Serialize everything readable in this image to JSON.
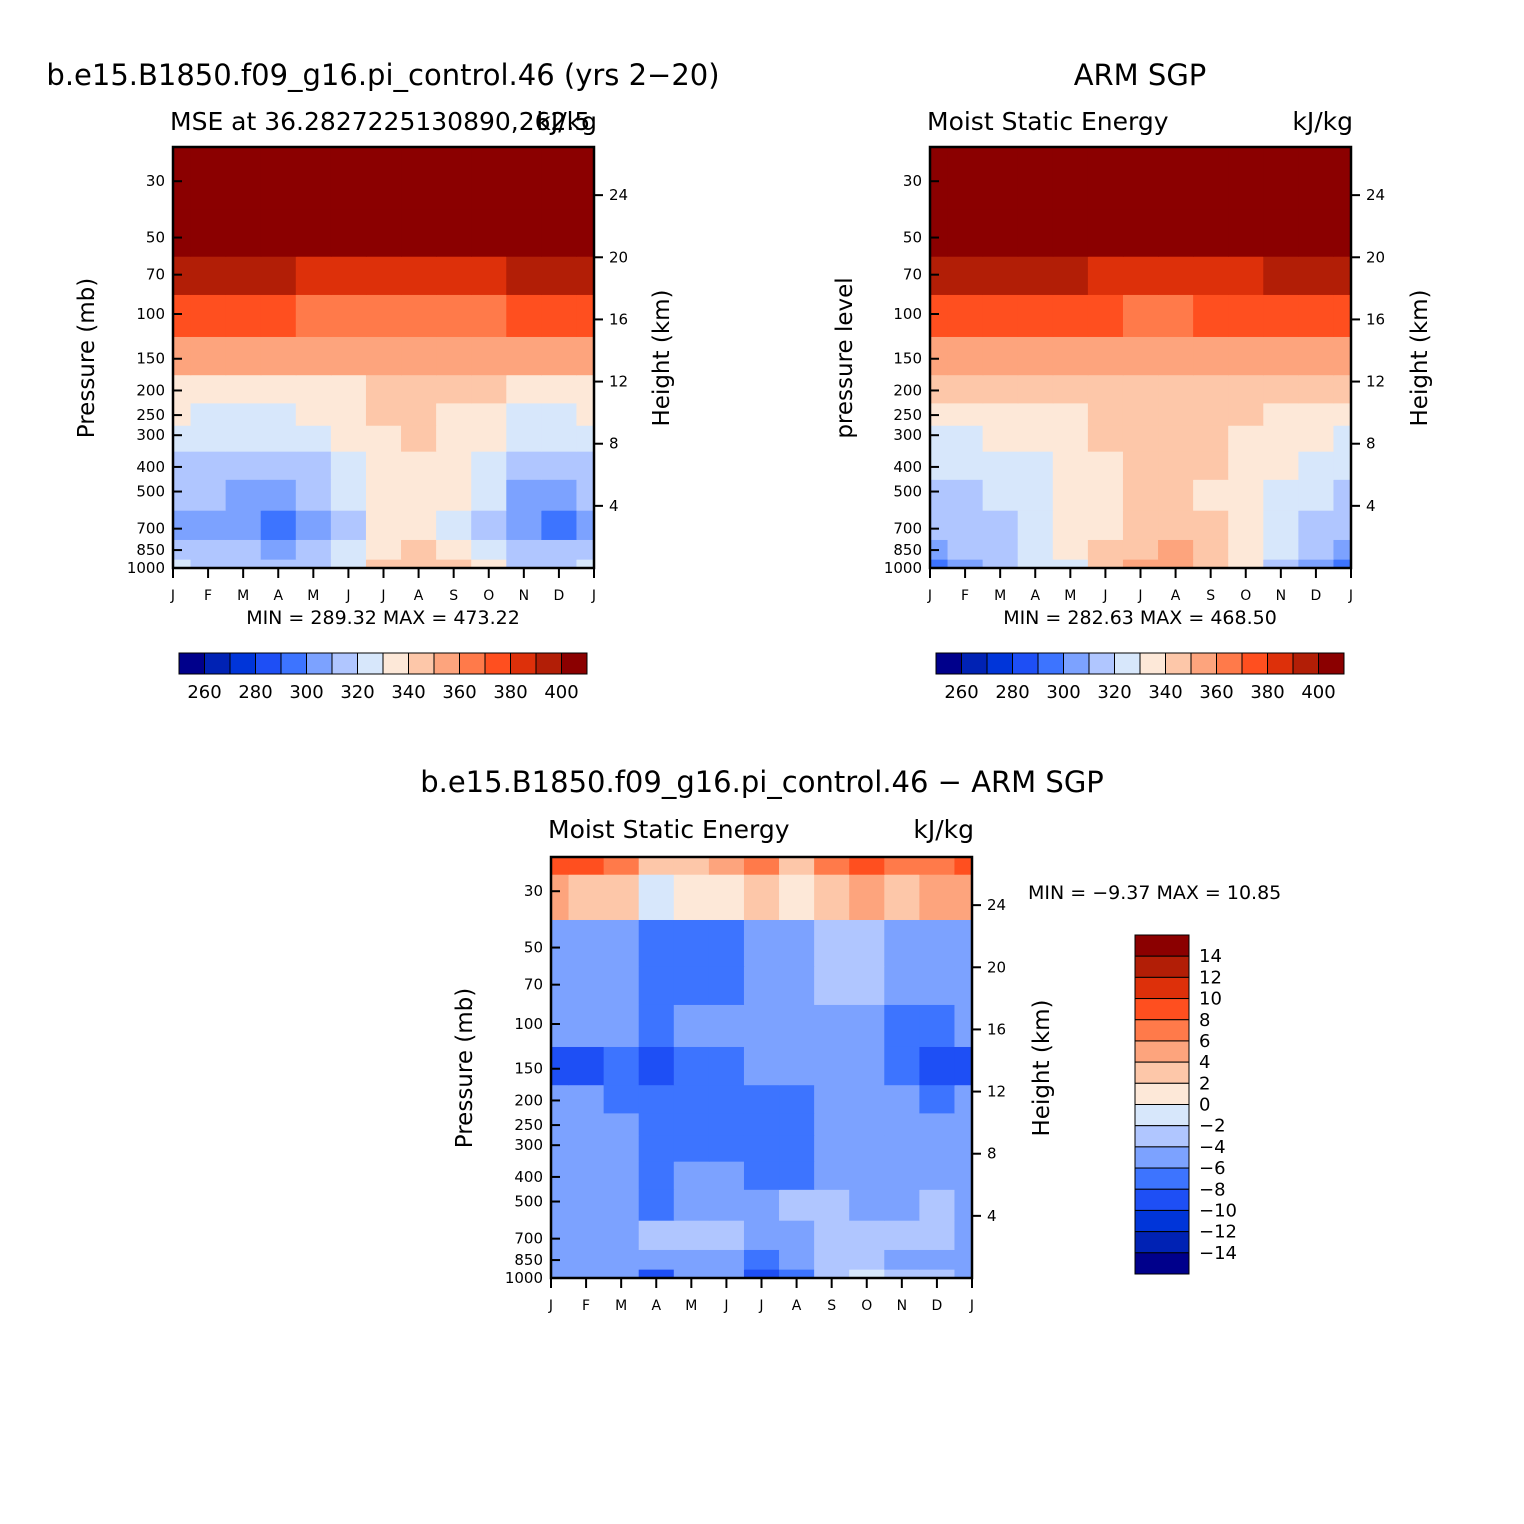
{
  "chart_data": [
    {
      "type": "heatmap",
      "title": "b.e15.B1850.f09_g16.pi_control.46 (yrs 2−20)",
      "left_subtitle": "MSE at 36.2827225130890,262.5",
      "right_subtitle": "kJ/kg",
      "ylabel": "Pressure (mb)",
      "ylabel_right": "Height (km)",
      "x_ticks": [
        "J",
        "F",
        "M",
        "A",
        "M",
        "J",
        "J",
        "A",
        "S",
        "O",
        "N",
        "D",
        "J"
      ],
      "y_ticks": [
        30,
        50,
        70,
        100,
        150,
        200,
        250,
        300,
        400,
        500,
        700,
        850,
        1000
      ],
      "y_ticks_right": [
        24,
        20,
        16,
        12,
        8,
        4
      ],
      "y_scale": "log",
      "ylim": [
        1000,
        22
      ],
      "min_max": "MIN =  289.32  MAX =  473.22",
      "months": [
        "Jan",
        "Feb",
        "Mar",
        "Apr",
        "May",
        "Jun",
        "Jul",
        "Aug",
        "Sep",
        "Oct",
        "Nov",
        "Dec",
        "Jan"
      ],
      "levels": [
        1000,
        850,
        700,
        500,
        400,
        300,
        250,
        200,
        150,
        100,
        70,
        50,
        30,
        22
      ],
      "values": [
        [
          316,
          314,
          312,
          310,
          312,
          318,
          330,
          336,
          330,
          322,
          314,
          312,
          316
        ],
        [
          312,
          310,
          308,
          306,
          310,
          316,
          328,
          334,
          328,
          318,
          310,
          308,
          312
        ],
        [
          306,
          304,
          302,
          300,
          304,
          312,
          324,
          328,
          320,
          312,
          302,
          300,
          306
        ],
        [
          310,
          308,
          306,
          304,
          310,
          318,
          326,
          328,
          324,
          316,
          306,
          304,
          310
        ],
        [
          314,
          312,
          310,
          308,
          312,
          320,
          326,
          328,
          326,
          318,
          310,
          308,
          314
        ],
        [
          318,
          316,
          316,
          316,
          320,
          324,
          328,
          330,
          328,
          322,
          316,
          316,
          318
        ],
        [
          321,
          320,
          320,
          320,
          322,
          325,
          330,
          331,
          329,
          325,
          320,
          320,
          321
        ],
        [
          327,
          326,
          326,
          326,
          327,
          329,
          331,
          332,
          331,
          330,
          328,
          327,
          327
        ],
        [
          342,
          341,
          341,
          341,
          341,
          341,
          341,
          341,
          341,
          341,
          341,
          342,
          342
        ],
        [
          362,
          361,
          361,
          360,
          358,
          358,
          357,
          357,
          358,
          358,
          360,
          361,
          362
        ],
        [
          387,
          386,
          383,
          381,
          379,
          377,
          375,
          375,
          376,
          377,
          380,
          384,
          387
        ],
        [
          420,
          418,
          414,
          410,
          404,
          400,
          398,
          398,
          400,
          404,
          410,
          416,
          420
        ],
        [
          460,
          458,
          455,
          450,
          445,
          440,
          438,
          438,
          440,
          445,
          450,
          455,
          460
        ],
        [
          470,
          468,
          466,
          462,
          458,
          455,
          453,
          453,
          455,
          458,
          462,
          466,
          470
        ]
      ],
      "levels_colorbar": [
        260,
        265,
        270,
        275,
        280,
        285,
        290,
        295,
        300,
        305,
        310,
        315,
        320,
        325,
        330,
        335,
        340,
        345,
        350,
        355,
        360,
        365,
        370,
        375,
        380,
        385,
        390,
        395,
        400
      ],
      "colorbar_labels": [
        "260",
        "280",
        "300",
        "320",
        "340",
        "360",
        "380",
        "400"
      ]
    },
    {
      "type": "heatmap",
      "title": "ARM SGP",
      "left_subtitle": "Moist Static Energy",
      "right_subtitle": "kJ/kg",
      "ylabel": "pressure level",
      "ylabel_right": "Height (km)",
      "x_ticks": [
        "J",
        "F",
        "M",
        "A",
        "M",
        "J",
        "J",
        "A",
        "S",
        "O",
        "N",
        "D",
        "J"
      ],
      "y_ticks": [
        30,
        50,
        70,
        100,
        150,
        200,
        250,
        300,
        400,
        500,
        700,
        850,
        1000
      ],
      "y_ticks_right": [
        24,
        20,
        16,
        12,
        8,
        4
      ],
      "y_scale": "log",
      "ylim": [
        1000,
        22
      ],
      "min_max": "MIN =  282.63  MAX =  468.50",
      "months": [
        "Jan",
        "Feb",
        "Mar",
        "Apr",
        "May",
        "Jun",
        "Jul",
        "Aug",
        "Sep",
        "Oct",
        "Nov",
        "Dec",
        "Jan"
      ],
      "levels": [
        1000,
        850,
        700,
        500,
        400,
        300,
        250,
        200,
        150,
        100,
        70,
        50,
        30,
        22
      ],
      "values": [
        [
          300,
          305,
          310,
          315,
          320,
          330,
          342,
          346,
          338,
          324,
          312,
          304,
          300
        ],
        [
          306,
          308,
          312,
          318,
          324,
          332,
          338,
          340,
          336,
          326,
          316,
          310,
          306
        ],
        [
          310,
          312,
          314,
          318,
          322,
          328,
          336,
          336,
          330,
          324,
          318,
          314,
          310
        ],
        [
          314,
          314,
          316,
          318,
          322,
          326,
          330,
          330,
          328,
          324,
          320,
          316,
          314
        ],
        [
          316,
          316,
          318,
          320,
          324,
          328,
          332,
          332,
          330,
          326,
          322,
          318,
          316
        ],
        [
          320,
          320,
          322,
          324,
          326,
          330,
          334,
          334,
          332,
          328,
          324,
          322,
          320
        ],
        [
          324,
          324,
          325,
          326,
          328,
          331,
          334,
          334,
          333,
          330,
          326,
          325,
          324
        ],
        [
          330,
          330,
          331,
          333,
          336,
          338,
          339,
          339,
          338,
          336,
          333,
          331,
          330
        ],
        [
          346,
          346,
          345,
          344,
          343,
          342,
          342,
          342,
          343,
          344,
          345,
          346,
          346
        ],
        [
          366,
          366,
          364,
          362,
          360,
          360,
          358,
          358,
          360,
          360,
          362,
          364,
          366
        ],
        [
          386,
          386,
          384,
          382,
          380,
          378,
          377,
          377,
          378,
          379,
          381,
          384,
          386
        ],
        [
          412,
          412,
          410,
          408,
          406,
          405,
          404,
          404,
          405,
          406,
          408,
          410,
          412
        ],
        [
          455,
          454,
          452,
          450,
          448,
          446,
          445,
          445,
          446,
          448,
          450,
          452,
          455
        ],
        [
          466,
          465,
          463,
          462,
          460,
          458,
          457,
          457,
          458,
          460,
          462,
          464,
          466
        ]
      ],
      "levels_colorbar": [
        260,
        265,
        270,
        275,
        280,
        285,
        290,
        295,
        300,
        305,
        310,
        315,
        320,
        325,
        330,
        335,
        340,
        345,
        350,
        355,
        360,
        365,
        370,
        375,
        380,
        385,
        390,
        395,
        400
      ],
      "colorbar_labels": [
        "260",
        "280",
        "300",
        "320",
        "340",
        "360",
        "380",
        "400"
      ]
    },
    {
      "type": "heatmap",
      "title": "b.e15.B1850.f09_g16.pi_control.46 − ARM SGP",
      "left_subtitle": "Moist Static Energy",
      "right_subtitle": "kJ/kg",
      "ylabel": "Pressure (mb)",
      "ylabel_right": "Height (km)",
      "x_ticks": [
        "J",
        "F",
        "M",
        "A",
        "M",
        "J",
        "J",
        "A",
        "S",
        "O",
        "N",
        "D",
        "J"
      ],
      "y_ticks": [
        30,
        50,
        70,
        100,
        150,
        200,
        250,
        300,
        400,
        500,
        700,
        850,
        1000
      ],
      "y_ticks_right": [
        24,
        20,
        16,
        12,
        8,
        4
      ],
      "y_scale": "log",
      "ylim": [
        1000,
        22
      ],
      "min_max": "MIN =   −9.37  MAX =   10.85",
      "months": [
        "Jan",
        "Feb",
        "Mar",
        "Apr",
        "May",
        "Jun",
        "Jul",
        "Aug",
        "Sep",
        "Oct",
        "Nov",
        "Dec",
        "Jan"
      ],
      "levels": [
        1000,
        850,
        700,
        500,
        400,
        300,
        250,
        200,
        150,
        100,
        70,
        50,
        30,
        22
      ],
      "values": [
        [
          -4.5,
          -5,
          -6,
          -9,
          -6,
          -6,
          -9,
          -7,
          -3,
          -2,
          -3,
          -4,
          -4.5
        ],
        [
          -5,
          -5,
          -5.5,
          -6,
          -5.5,
          -6,
          -6.5,
          -6,
          -3.5,
          -4,
          -4.5,
          -5,
          -5
        ],
        [
          -5,
          -5,
          -5,
          -4,
          -3.5,
          -4,
          -5,
          -4.5,
          -3,
          -4,
          -4,
          -4,
          -5
        ],
        [
          -5,
          -5,
          -5.5,
          -6.5,
          -5,
          -4.5,
          -5,
          -4,
          -3.5,
          -4.5,
          -5,
          -4,
          -5
        ],
        [
          -5,
          -5,
          -5.5,
          -7,
          -6,
          -5.5,
          -6.5,
          -7,
          -5.5,
          -5,
          -5.5,
          -5,
          -5
        ],
        [
          -5,
          -5,
          -5.5,
          -6.5,
          -6.5,
          -6.5,
          -6.8,
          -7,
          -6,
          -5,
          -5.5,
          -5.5,
          -5
        ],
        [
          -5.5,
          -5.5,
          -6,
          -6.5,
          -6.5,
          -7,
          -7,
          -7,
          -6,
          -5,
          -5.5,
          -5.5,
          -5.5
        ],
        [
          -6,
          -6,
          -6.5,
          -6.5,
          -6.5,
          -7,
          -7,
          -7,
          -6,
          -5,
          -6,
          -6.5,
          -6
        ],
        [
          -8.5,
          -8.5,
          -8,
          -8.5,
          -7,
          -6.5,
          -5.5,
          -6,
          -6,
          -5,
          -7.5,
          -8.5,
          -8.5
        ],
        [
          -5.5,
          -5.5,
          -6,
          -6.5,
          -6,
          -6,
          -5.5,
          -6,
          -5,
          -4.5,
          -7,
          -7.5,
          -5.5
        ],
        [
          -5,
          -5,
          -5.5,
          -6.5,
          -6.5,
          -6.5,
          -5.5,
          -5.5,
          -4,
          -3.5,
          -5,
          -5.5,
          -5
        ],
        [
          -5,
          -5,
          -5.2,
          -6.2,
          -6.2,
          -6.2,
          -6,
          -5.5,
          -4,
          -4,
          -4.5,
          -5,
          -5
        ],
        [
          4,
          3.5,
          2.5,
          -1,
          0,
          1.5,
          2.5,
          0,
          2.5,
          4.5,
          3.5,
          4,
          4
        ],
        [
          8,
          8,
          7,
          2,
          3,
          5,
          6,
          3,
          6,
          8,
          7,
          7.5,
          8
        ]
      ],
      "levels_colorbar": [
        -14,
        -12,
        -10,
        -8,
        -6,
        -4,
        -2,
        0,
        2,
        4,
        6,
        8,
        10,
        12,
        14
      ],
      "colorbar_labels": [
        "14",
        "12",
        "10",
        "8",
        "6",
        "4",
        "2",
        "0",
        "−2",
        "−4",
        "−6",
        "−8",
        "−10",
        "−12",
        "−14"
      ]
    }
  ]
}
